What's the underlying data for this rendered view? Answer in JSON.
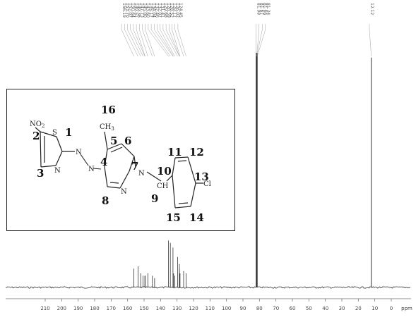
{
  "chart_data": {
    "type": "line",
    "title": "",
    "xlabel": "ppm",
    "xlim": [
      215,
      -5
    ],
    "x_ticks": [
      210,
      200,
      190,
      180,
      170,
      160,
      150,
      140,
      130,
      120,
      110,
      100,
      90,
      80,
      70,
      60,
      50,
      40,
      30,
      20,
      10,
      0
    ],
    "x_tick_labels": [
      "210",
      "200",
      "190",
      "180",
      "170",
      "160",
      "150",
      "140",
      "130",
      "120",
      "110",
      "100",
      "90",
      "80",
      "70",
      "60",
      "50",
      "40",
      "30",
      "20",
      "10",
      "0"
    ],
    "axis_unit_label": "ppm",
    "peaks": [
      {
        "ppm": 156.19,
        "height": 0.08
      },
      {
        "ppm": 153.7,
        "height": 0.09
      },
      {
        "ppm": 152.07,
        "height": 0.06
      },
      {
        "ppm": 150.64,
        "height": 0.05
      },
      {
        "ppm": 149.51,
        "height": 0.05
      },
      {
        "ppm": 149.36,
        "height": 0.05
      },
      {
        "ppm": 147.73,
        "height": 0.06
      },
      {
        "ppm": 145.0,
        "height": 0.05
      },
      {
        "ppm": 143.6,
        "height": 0.04
      },
      {
        "ppm": 135.17,
        "height": 0.2
      },
      {
        "ppm": 134.04,
        "height": 0.19
      },
      {
        "ppm": 132.46,
        "height": 0.17
      },
      {
        "ppm": 132.07,
        "height": 0.06
      },
      {
        "ppm": 131.41,
        "height": 0.05
      },
      {
        "ppm": 129.68,
        "height": 0.13
      },
      {
        "ppm": 128.59,
        "height": 0.1
      },
      {
        "ppm": 128.52,
        "height": 0.08
      },
      {
        "ppm": 128.17,
        "height": 0.06
      },
      {
        "ppm": 126.02,
        "height": 0.07
      },
      {
        "ppm": 124.45,
        "height": 0.06
      },
      {
        "ppm": 81.98,
        "height": 1.0
      },
      {
        "ppm": 81.67,
        "height": 1.0
      },
      {
        "ppm": 81.66,
        "height": 1.0
      },
      {
        "ppm": 81.34,
        "height": 1.0
      },
      {
        "ppm": 12.12,
        "height": 0.98
      }
    ],
    "peak_labels_group_1": [
      "156.19",
      "153.70",
      "152.07",
      "150.64",
      "149.51",
      "149.36",
      "147.73",
      "145.00",
      "143.60",
      "135.17",
      "134.04",
      "132.46",
      "132.07",
      "131.41",
      "129.68",
      "128.59",
      "128.52",
      "128.17",
      "126.02",
      "124.45"
    ],
    "peak_labels_group_2": [
      "81.98",
      "81.67",
      "81.66",
      "81.34"
    ],
    "peak_labels_group_3": [
      "12.12"
    ],
    "grid": false,
    "legend": "none"
  },
  "inset": {
    "numbers": [
      "1",
      "2",
      "3",
      "4",
      "5",
      "6",
      "7",
      "8",
      "9",
      "10",
      "11",
      "12",
      "13",
      "14",
      "15",
      "16"
    ],
    "atoms": {
      "no2": "NO",
      "no2_sub": "2",
      "s": "S",
      "n_ring": "N",
      "n_azo1": "N",
      "n_azo2": "N",
      "ch3": "CH",
      "ch3_sub": "3",
      "n_pyr": "N",
      "n_imine": "N",
      "ch": "CH",
      "cl": "Cl"
    }
  },
  "colors": {
    "trace": "#333333",
    "background": "#ffffff",
    "text": "#111111"
  }
}
